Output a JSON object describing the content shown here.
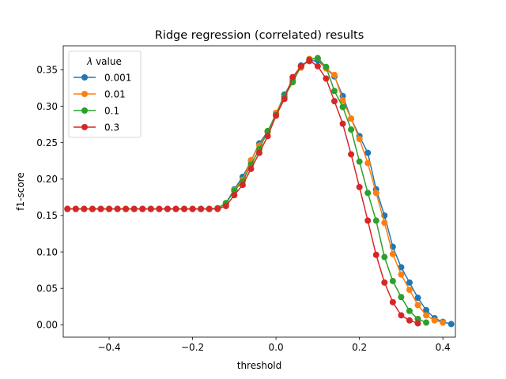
{
  "chart_data": {
    "type": "line",
    "title": "Ridge regression (correlated) results",
    "xlabel": "threshold",
    "ylabel": "f1-score",
    "xlim": [
      -0.51,
      0.43
    ],
    "ylim": [
      -0.017,
      0.383
    ],
    "xticks": [
      -0.4,
      -0.2,
      0.0,
      0.2,
      0.4
    ],
    "xtick_labels": [
      "−0.4",
      "−0.2",
      "0.0",
      "0.2",
      "0.4"
    ],
    "yticks": [
      0.0,
      0.05,
      0.1,
      0.15,
      0.2,
      0.25,
      0.3,
      0.35
    ],
    "ytick_labels": [
      "0.00",
      "0.05",
      "0.10",
      "0.15",
      "0.20",
      "0.25",
      "0.30",
      "0.35"
    ],
    "grid": false,
    "legend": {
      "title_symbol": "λ",
      "title_text": " value",
      "position": "top-left"
    },
    "series": [
      {
        "name": "0.001",
        "color": "#1f77b4",
        "x": [
          -0.5,
          -0.48,
          -0.46,
          -0.44,
          -0.42,
          -0.4,
          -0.38,
          -0.36,
          -0.34,
          -0.32,
          -0.3,
          -0.28,
          -0.26,
          -0.24,
          -0.22,
          -0.2,
          -0.18,
          -0.16,
          -0.14,
          -0.12,
          -0.1,
          -0.08,
          -0.06,
          -0.04,
          -0.02,
          0.0,
          0.02,
          0.04,
          0.06,
          0.08,
          0.1,
          0.12,
          0.14,
          0.16,
          0.18,
          0.2,
          0.22,
          0.24,
          0.26,
          0.28,
          0.3,
          0.32,
          0.34,
          0.36,
          0.38,
          0.4,
          0.42
        ],
        "y": [
          0.159,
          0.159,
          0.159,
          0.159,
          0.159,
          0.159,
          0.159,
          0.159,
          0.159,
          0.159,
          0.159,
          0.159,
          0.159,
          0.159,
          0.159,
          0.159,
          0.159,
          0.159,
          0.16,
          0.167,
          0.186,
          0.203,
          0.225,
          0.249,
          0.265,
          0.289,
          0.316,
          0.336,
          0.356,
          0.362,
          0.363,
          0.352,
          0.341,
          0.314,
          0.283,
          0.259,
          0.236,
          0.186,
          0.15,
          0.107,
          0.079,
          0.058,
          0.037,
          0.02,
          0.009,
          0.004,
          0.001
        ]
      },
      {
        "name": "0.01",
        "color": "#ff7f0e",
        "x": [
          -0.5,
          -0.48,
          -0.46,
          -0.44,
          -0.42,
          -0.4,
          -0.38,
          -0.36,
          -0.34,
          -0.32,
          -0.3,
          -0.28,
          -0.26,
          -0.24,
          -0.22,
          -0.2,
          -0.18,
          -0.16,
          -0.14,
          -0.12,
          -0.1,
          -0.08,
          -0.06,
          -0.04,
          -0.02,
          0.0,
          0.02,
          0.04,
          0.06,
          0.08,
          0.1,
          0.12,
          0.14,
          0.16,
          0.18,
          0.2,
          0.22,
          0.24,
          0.26,
          0.28,
          0.3,
          0.32,
          0.34,
          0.36,
          0.38,
          0.4
        ],
        "y": [
          0.159,
          0.159,
          0.159,
          0.159,
          0.159,
          0.159,
          0.159,
          0.159,
          0.159,
          0.159,
          0.159,
          0.159,
          0.159,
          0.159,
          0.159,
          0.159,
          0.159,
          0.159,
          0.16,
          0.166,
          0.185,
          0.199,
          0.226,
          0.246,
          0.264,
          0.291,
          0.313,
          0.338,
          0.353,
          0.365,
          0.366,
          0.352,
          0.343,
          0.308,
          0.283,
          0.255,
          0.222,
          0.181,
          0.14,
          0.097,
          0.069,
          0.048,
          0.027,
          0.013,
          0.006,
          0.003
        ]
      },
      {
        "name": "0.1",
        "color": "#2ca02c",
        "x": [
          -0.5,
          -0.48,
          -0.46,
          -0.44,
          -0.42,
          -0.4,
          -0.38,
          -0.36,
          -0.34,
          -0.32,
          -0.3,
          -0.28,
          -0.26,
          -0.24,
          -0.22,
          -0.2,
          -0.18,
          -0.16,
          -0.14,
          -0.12,
          -0.1,
          -0.08,
          -0.06,
          -0.04,
          -0.02,
          0.0,
          0.02,
          0.04,
          0.06,
          0.08,
          0.1,
          0.12,
          0.14,
          0.16,
          0.18,
          0.2,
          0.22,
          0.24,
          0.26,
          0.28,
          0.3,
          0.32,
          0.34,
          0.36
        ],
        "y": [
          0.159,
          0.159,
          0.159,
          0.159,
          0.159,
          0.159,
          0.159,
          0.159,
          0.159,
          0.159,
          0.159,
          0.159,
          0.159,
          0.159,
          0.159,
          0.159,
          0.159,
          0.159,
          0.16,
          0.167,
          0.184,
          0.197,
          0.22,
          0.241,
          0.266,
          0.288,
          0.313,
          0.333,
          0.355,
          0.364,
          0.366,
          0.354,
          0.321,
          0.299,
          0.268,
          0.224,
          0.181,
          0.143,
          0.093,
          0.06,
          0.038,
          0.019,
          0.008,
          0.003
        ]
      },
      {
        "name": "0.3",
        "color": "#d62728",
        "x": [
          -0.5,
          -0.48,
          -0.46,
          -0.44,
          -0.42,
          -0.4,
          -0.38,
          -0.36,
          -0.34,
          -0.32,
          -0.3,
          -0.28,
          -0.26,
          -0.24,
          -0.22,
          -0.2,
          -0.18,
          -0.16,
          -0.14,
          -0.12,
          -0.1,
          -0.08,
          -0.06,
          -0.04,
          -0.02,
          0.0,
          0.02,
          0.04,
          0.06,
          0.08,
          0.1,
          0.12,
          0.14,
          0.16,
          0.18,
          0.2,
          0.22,
          0.24,
          0.26,
          0.28,
          0.3,
          0.32,
          0.34
        ],
        "y": [
          0.159,
          0.159,
          0.159,
          0.159,
          0.159,
          0.159,
          0.159,
          0.159,
          0.159,
          0.159,
          0.159,
          0.159,
          0.159,
          0.159,
          0.159,
          0.159,
          0.159,
          0.159,
          0.159,
          0.163,
          0.178,
          0.192,
          0.214,
          0.236,
          0.259,
          0.287,
          0.31,
          0.34,
          0.355,
          0.363,
          0.355,
          0.338,
          0.307,
          0.276,
          0.234,
          0.189,
          0.143,
          0.096,
          0.058,
          0.031,
          0.013,
          0.006,
          0.002
        ]
      }
    ]
  }
}
